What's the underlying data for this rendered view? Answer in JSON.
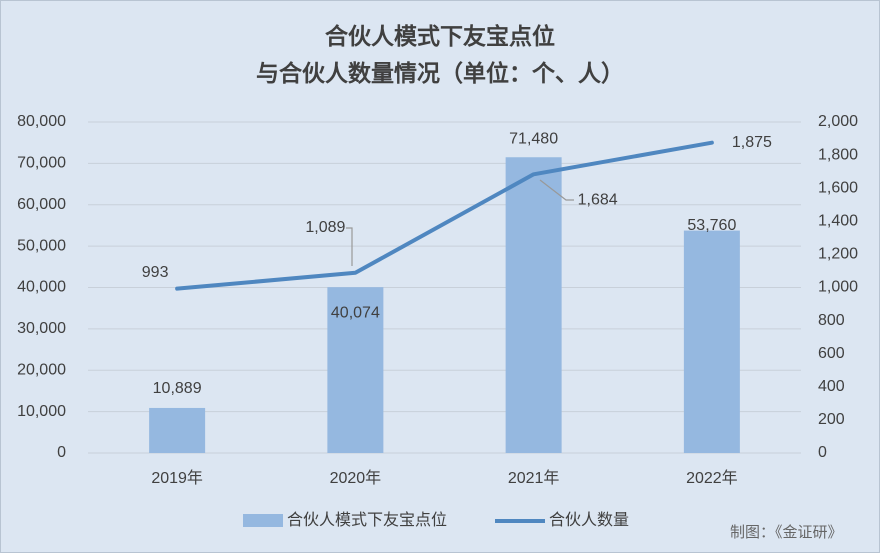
{
  "chart_data": {
    "type": "bar_line",
    "title": [
      "合伙人模式下友宝点位",
      "与合伙人数量情况（单位：个、人）"
    ],
    "categories": [
      "2019年",
      "2020年",
      "2021年",
      "2022年"
    ],
    "series": [
      {
        "name": "合伙人模式下友宝点位",
        "type": "bar",
        "color": "#95b8e0",
        "values": [
          10889,
          40074,
          71480,
          53760
        ],
        "value_labels": [
          "10,889",
          "40,074",
          "71,480",
          "53,760"
        ]
      },
      {
        "name": "合伙人数量",
        "type": "line",
        "axis": "y2",
        "color": "#4f87c0",
        "values": [
          993,
          1089,
          1684,
          1875
        ],
        "value_labels": [
          "993",
          "1,089",
          "1,684",
          "1,875"
        ]
      }
    ],
    "ylim": [
      0,
      80000
    ],
    "yticks": [
      0,
      {
        "value": 10000,
        "label": "10,000"
      },
      {
        "value": 20000,
        "label": "20,000"
      },
      {
        "value": 30000,
        "label": "30,000"
      },
      {
        "value": 40000,
        "label": "40,000"
      },
      {
        "value": 50000,
        "label": "50,000"
      },
      {
        "value": 60000,
        "label": "60,000"
      },
      {
        "value": 70000,
        "label": "70,000"
      },
      {
        "value": 80000,
        "label": "80,000"
      }
    ],
    "y2lim": [
      0,
      2000
    ],
    "y2ticks": [
      0,
      200,
      400,
      600,
      800,
      {
        "value": 1000,
        "label": "1,000"
      },
      {
        "value": 1200,
        "label": "1,200"
      },
      {
        "value": 1400,
        "label": "1,400"
      },
      {
        "value": 1600,
        "label": "1,600"
      },
      {
        "value": 1800,
        "label": "1,800"
      },
      {
        "value": 2000,
        "label": "2,000"
      }
    ],
    "grid": true,
    "legend": "bottom",
    "note": "制图：《金证研》"
  }
}
